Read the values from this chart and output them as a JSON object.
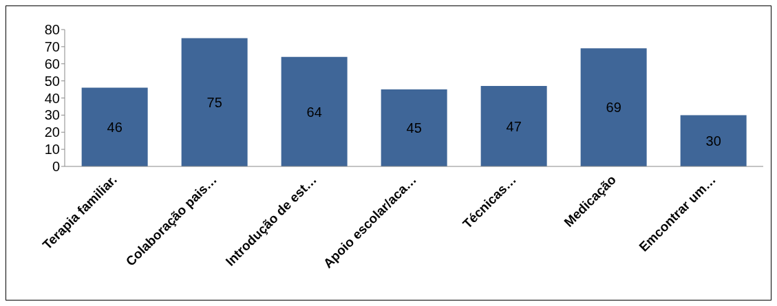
{
  "chart_data": {
    "type": "bar",
    "categories": [
      "Terapia familiar.",
      "Colaboração pais…",
      "Introdução de est…",
      "Apoio escolar/aca…",
      "Técnicas…",
      "Medicação",
      "Emcontrar um…"
    ],
    "values": [
      46,
      75,
      64,
      45,
      47,
      69,
      30
    ],
    "color": "#3f6698",
    "ylim": [
      0,
      80
    ],
    "yticks": [
      0,
      10,
      20,
      30,
      40,
      50,
      60,
      70,
      80
    ],
    "data_labels": true
  }
}
